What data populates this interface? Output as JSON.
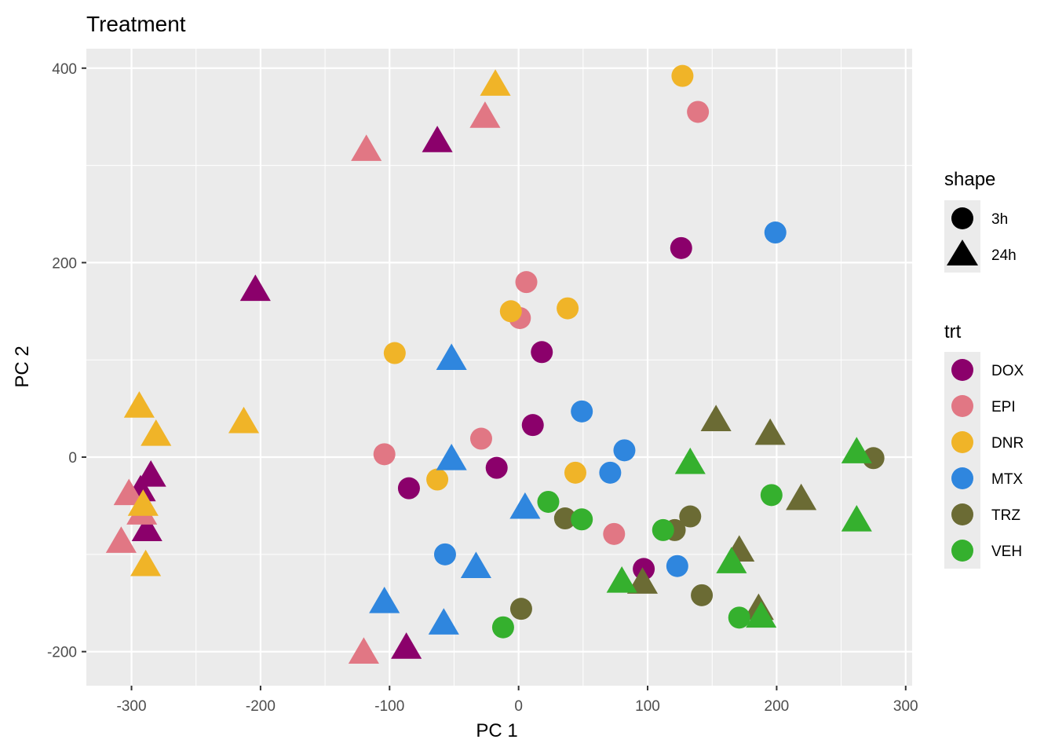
{
  "chart_data": {
    "type": "scatter",
    "title": "Treatment",
    "xlabel": "PC 1",
    "ylabel": "PC 2",
    "xlim": [
      -335,
      305
    ],
    "ylim": [
      -235,
      420
    ],
    "grid": true,
    "legend_position": "right",
    "x_ticks": [
      -300,
      -200,
      -100,
      0,
      100,
      200,
      300
    ],
    "y_ticks": [
      -200,
      0,
      200,
      400
    ],
    "x_tick_labels": [
      "-300",
      "-200",
      "-100",
      "0",
      "100",
      "200",
      "300"
    ],
    "y_tick_labels": [
      "-200",
      "0",
      "200",
      "400"
    ],
    "colors": {
      "DOX": "#8B006B",
      "EPI": "#E17784",
      "DNR": "#F0B428",
      "MTX": "#2F86DE",
      "TRZ": "#6B6B34",
      "VEH": "#35B02E"
    },
    "shape_legend": {
      "title": "shape",
      "items": [
        {
          "label": "3h",
          "shape": "circle"
        },
        {
          "label": "24h",
          "shape": "triangle"
        }
      ]
    },
    "color_legend": {
      "title": "trt",
      "items": [
        "DOX",
        "EPI",
        "DNR",
        "MTX",
        "TRZ",
        "VEH"
      ]
    },
    "points": [
      {
        "x": 126,
        "y": 215,
        "trt": "DOX",
        "shape": "3h"
      },
      {
        "x": 18,
        "y": 108,
        "trt": "DOX",
        "shape": "3h"
      },
      {
        "x": 11,
        "y": 33,
        "trt": "DOX",
        "shape": "3h"
      },
      {
        "x": -17,
        "y": -11,
        "trt": "DOX",
        "shape": "3h"
      },
      {
        "x": -85,
        "y": -32,
        "trt": "DOX",
        "shape": "3h"
      },
      {
        "x": 97,
        "y": -115,
        "trt": "DOX",
        "shape": "3h"
      },
      {
        "x": -63,
        "y": 325,
        "trt": "DOX",
        "shape": "24h"
      },
      {
        "x": -204,
        "y": 172,
        "trt": "DOX",
        "shape": "24h"
      },
      {
        "x": -285,
        "y": -19,
        "trt": "DOX",
        "shape": "24h"
      },
      {
        "x": -293,
        "y": -34,
        "trt": "DOX",
        "shape": "24h"
      },
      {
        "x": -288,
        "y": -75,
        "trt": "DOX",
        "shape": "24h"
      },
      {
        "x": -87,
        "y": -196,
        "trt": "DOX",
        "shape": "24h"
      },
      {
        "x": 139,
        "y": 355,
        "trt": "EPI",
        "shape": "3h"
      },
      {
        "x": 6,
        "y": 180,
        "trt": "EPI",
        "shape": "3h"
      },
      {
        "x": 1,
        "y": 143,
        "trt": "EPI",
        "shape": "3h"
      },
      {
        "x": -29,
        "y": 19,
        "trt": "EPI",
        "shape": "3h"
      },
      {
        "x": -104,
        "y": 3,
        "trt": "EPI",
        "shape": "3h"
      },
      {
        "x": 74,
        "y": -79,
        "trt": "EPI",
        "shape": "3h"
      },
      {
        "x": -26,
        "y": 350,
        "trt": "EPI",
        "shape": "24h"
      },
      {
        "x": -118,
        "y": 316,
        "trt": "EPI",
        "shape": "24h"
      },
      {
        "x": -302,
        "y": -38,
        "trt": "EPI",
        "shape": "24h"
      },
      {
        "x": -292,
        "y": -58,
        "trt": "EPI",
        "shape": "24h"
      },
      {
        "x": -308,
        "y": -87,
        "trt": "EPI",
        "shape": "24h"
      },
      {
        "x": -120,
        "y": -201,
        "trt": "EPI",
        "shape": "24h"
      },
      {
        "x": 127,
        "y": 392,
        "trt": "DNR",
        "shape": "3h"
      },
      {
        "x": 38,
        "y": 153,
        "trt": "DNR",
        "shape": "3h"
      },
      {
        "x": -6,
        "y": 150,
        "trt": "DNR",
        "shape": "3h"
      },
      {
        "x": -96,
        "y": 107,
        "trt": "DNR",
        "shape": "3h"
      },
      {
        "x": 44,
        "y": -16,
        "trt": "DNR",
        "shape": "3h"
      },
      {
        "x": -63,
        "y": -23,
        "trt": "DNR",
        "shape": "3h"
      },
      {
        "x": -18,
        "y": 383,
        "trt": "DNR",
        "shape": "24h"
      },
      {
        "x": -294,
        "y": 52,
        "trt": "DNR",
        "shape": "24h"
      },
      {
        "x": -281,
        "y": 23,
        "trt": "DNR",
        "shape": "24h"
      },
      {
        "x": -213,
        "y": 36,
        "trt": "DNR",
        "shape": "24h"
      },
      {
        "x": -291,
        "y": -49,
        "trt": "DNR",
        "shape": "24h"
      },
      {
        "x": -289,
        "y": -111,
        "trt": "DNR",
        "shape": "24h"
      },
      {
        "x": 199,
        "y": 231,
        "trt": "MTX",
        "shape": "3h"
      },
      {
        "x": 49,
        "y": 47,
        "trt": "MTX",
        "shape": "3h"
      },
      {
        "x": 82,
        "y": 7,
        "trt": "MTX",
        "shape": "3h"
      },
      {
        "x": 71,
        "y": -16,
        "trt": "MTX",
        "shape": "3h"
      },
      {
        "x": -57,
        "y": -100,
        "trt": "MTX",
        "shape": "3h"
      },
      {
        "x": 123,
        "y": -112,
        "trt": "MTX",
        "shape": "3h"
      },
      {
        "x": -52,
        "y": 101,
        "trt": "MTX",
        "shape": "24h"
      },
      {
        "x": -52,
        "y": -2,
        "trt": "MTX",
        "shape": "24h"
      },
      {
        "x": 5,
        "y": -52,
        "trt": "MTX",
        "shape": "24h"
      },
      {
        "x": -33,
        "y": -113,
        "trt": "MTX",
        "shape": "24h"
      },
      {
        "x": -104,
        "y": -149,
        "trt": "MTX",
        "shape": "24h"
      },
      {
        "x": -58,
        "y": -171,
        "trt": "MTX",
        "shape": "24h"
      },
      {
        "x": 275,
        "y": -1,
        "trt": "TRZ",
        "shape": "3h"
      },
      {
        "x": 36,
        "y": -63,
        "trt": "TRZ",
        "shape": "3h"
      },
      {
        "x": 133,
        "y": -61,
        "trt": "TRZ",
        "shape": "3h"
      },
      {
        "x": 121,
        "y": -75,
        "trt": "TRZ",
        "shape": "3h"
      },
      {
        "x": 142,
        "y": -142,
        "trt": "TRZ",
        "shape": "3h"
      },
      {
        "x": 2,
        "y": -156,
        "trt": "TRZ",
        "shape": "3h"
      },
      {
        "x": 153,
        "y": 38,
        "trt": "TRZ",
        "shape": "24h"
      },
      {
        "x": 195,
        "y": 24,
        "trt": "TRZ",
        "shape": "24h"
      },
      {
        "x": 219,
        "y": -43,
        "trt": "TRZ",
        "shape": "24h"
      },
      {
        "x": 171,
        "y": -96,
        "trt": "TRZ",
        "shape": "24h"
      },
      {
        "x": 96,
        "y": -129,
        "trt": "TRZ",
        "shape": "24h"
      },
      {
        "x": 186,
        "y": -156,
        "trt": "TRZ",
        "shape": "24h"
      },
      {
        "x": 196,
        "y": -39,
        "trt": "VEH",
        "shape": "3h"
      },
      {
        "x": 23,
        "y": -46,
        "trt": "VEH",
        "shape": "3h"
      },
      {
        "x": 49,
        "y": -64,
        "trt": "VEH",
        "shape": "3h"
      },
      {
        "x": 112,
        "y": -75,
        "trt": "VEH",
        "shape": "3h"
      },
      {
        "x": 171,
        "y": -165,
        "trt": "VEH",
        "shape": "3h"
      },
      {
        "x": -12,
        "y": -175,
        "trt": "VEH",
        "shape": "3h"
      },
      {
        "x": 262,
        "y": 5,
        "trt": "VEH",
        "shape": "24h"
      },
      {
        "x": 133,
        "y": -6,
        "trt": "VEH",
        "shape": "24h"
      },
      {
        "x": 262,
        "y": -65,
        "trt": "VEH",
        "shape": "24h"
      },
      {
        "x": 165,
        "y": -108,
        "trt": "VEH",
        "shape": "24h"
      },
      {
        "x": 80,
        "y": -128,
        "trt": "VEH",
        "shape": "24h"
      },
      {
        "x": 188,
        "y": -164,
        "trt": "VEH",
        "shape": "24h"
      }
    ]
  }
}
